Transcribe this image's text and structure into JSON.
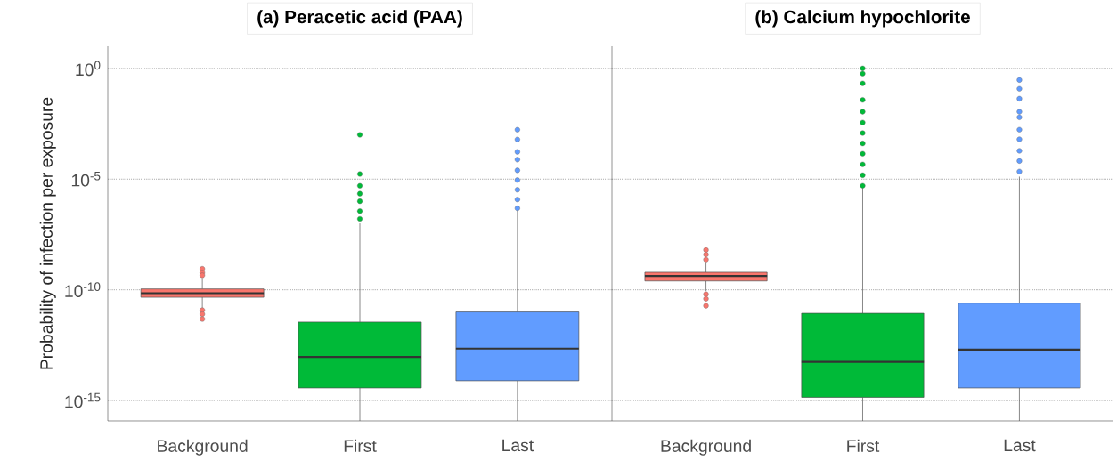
{
  "chart_data": [
    {
      "type": "box",
      "title": "(a) Peracetic acid (PAA)",
      "ylabel": "Probability of infection per exposure",
      "log": "y",
      "grid": "y",
      "categories": [
        "Background",
        "First",
        "Last"
      ],
      "colors": [
        "#f8766d",
        "#00ba38",
        "#619cff"
      ],
      "ylim": [
        1.2e-16,
        10
      ],
      "yticks": [
        {
          "value": 1,
          "label": "10$^{0}$"
        },
        {
          "value": 1e-05,
          "label": "10$^{-5}$"
        },
        {
          "value": 1e-10,
          "label": "10$^{-10}$"
        },
        {
          "value": 1e-15,
          "label": "10$^{-15}$"
        }
      ],
      "boxes": [
        {
          "low": 1.3e-11,
          "q1": 4.6e-11,
          "median": 7e-11,
          "q3": 1.1e-10,
          "high": 3.4e-10,
          "outliers": [
            8.9e-10,
            5.9e-10,
            4.5e-10,
            1.2e-11,
            8e-12,
            4.8e-12
          ]
        },
        {
          "low": 1.2e-16,
          "q1": 3.7e-15,
          "median": 9.3e-14,
          "q3": 3.5e-12,
          "high": 1e-07,
          "outliers": [
            0.001,
            1.7e-05,
            5e-06,
            2.2e-06,
            1e-06,
            3.6e-07,
            1.6e-07
          ]
        },
        {
          "low": 1.2e-16,
          "q1": 7.8e-15,
          "median": 2.2e-13,
          "q3": 1e-11,
          "high": 4.5e-07,
          "outliers": [
            0.0017,
            0.00062,
            0.00017,
            7.6e-05,
            2.5e-05,
            9.1e-06,
            3.3e-06,
            1.2e-06,
            4.8e-07
          ]
        }
      ]
    },
    {
      "type": "box",
      "title": "(b) Calcium hypochlorite",
      "log": "y",
      "grid": "y",
      "tick_labels": "x",
      "categories": [
        "Background",
        "First",
        "Last"
      ],
      "colors": [
        "#f8766d",
        "#00ba38",
        "#619cff"
      ],
      "ylim": [
        1.2e-16,
        10
      ],
      "yticks": [
        {
          "value": 1,
          "label": null
        },
        {
          "value": 1e-05,
          "label": null
        },
        {
          "value": 1e-10,
          "label": null
        },
        {
          "value": 1e-15,
          "label": null
        }
      ],
      "boxes": [
        {
          "low": 8.9e-11,
          "q1": 2.5e-10,
          "median": 4.2e-10,
          "q3": 6.2e-10,
          "high": 1.8e-09,
          "outliers": [
            6.3e-09,
            3.9e-09,
            2.3e-09,
            6.3e-11,
            3.9e-11,
            1.9e-11
          ]
        },
        {
          "low": 1.2e-16,
          "q1": 1.4e-15,
          "median": 5.6e-14,
          "q3": 8.7e-12,
          "high": 4.4e-06,
          "outliers": [
            1,
            0.58,
            0.21,
            0.038,
            0.011,
            0.0036,
            0.0012,
            0.00041,
            0.00014,
            4.6e-05,
            1.5e-05,
            5e-06
          ]
        },
        {
          "low": 1.2e-16,
          "q1": 3.7e-15,
          "median": 2e-13,
          "q3": 2.5e-11,
          "high": 1.3e-05,
          "outliers": [
            0.3,
            0.12,
            0.043,
            0.011,
            0.0062,
            0.0017,
            0.00063,
            0.00019,
            6.6e-05,
            2.2e-05
          ]
        }
      ]
    }
  ]
}
